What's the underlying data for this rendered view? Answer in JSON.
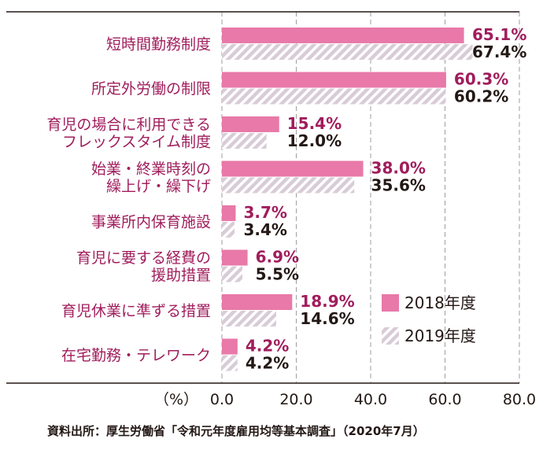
{
  "chart_data": {
    "type": "bar",
    "orientation": "horizontal",
    "categories": [
      [
        "短時間勤務制度"
      ],
      [
        "所定外労働の制限"
      ],
      [
        "育児の場合に利用できる",
        "フレックスタイム制度"
      ],
      [
        "始業・終業時刻の",
        "繰上げ・繰下げ"
      ],
      [
        "事業所内保育施設"
      ],
      [
        "育児に要する経費の",
        "援助措置"
      ],
      [
        "育児休業に準ずる措置"
      ],
      [
        "在宅勤務・テレワーク"
      ]
    ],
    "series": [
      {
        "name": "2018年度",
        "color": "#e879a8",
        "pattern": "solid",
        "values": [
          65.1,
          60.3,
          15.4,
          38.0,
          3.7,
          6.9,
          18.9,
          4.2
        ],
        "labels": [
          "65.1%",
          "60.3%",
          "15.4%",
          "38.0%",
          "3.7%",
          "6.9%",
          "18.9%",
          "4.2%"
        ]
      },
      {
        "name": "2019年度",
        "color": "#d8ccd6",
        "pattern": "hatched",
        "values": [
          67.4,
          60.2,
          12.0,
          35.6,
          3.4,
          5.5,
          14.6,
          4.2
        ],
        "labels": [
          "67.4%",
          "60.2%",
          "12.0%",
          "35.6%",
          "3.4%",
          "5.5%",
          "14.6%",
          "4.2%"
        ]
      }
    ],
    "xlim": [
      0,
      80
    ],
    "xticks": [
      "0.0",
      "20.0",
      "40.0",
      "60.0",
      "80.0"
    ],
    "xtick_values": [
      0,
      20,
      40,
      60,
      80
    ],
    "unit_label": "（%）",
    "grid": "dashed-vertical",
    "legend_position": "bottom-right"
  },
  "source": "資料出所：厚生労働省「令和元年度雇用均等基本調査」（2020年7月）"
}
